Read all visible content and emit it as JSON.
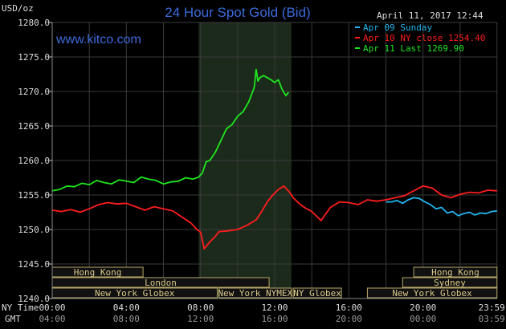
{
  "title": "24 Hour Spot Gold (Bid)",
  "website": "www.kitco.com",
  "timestamp": "April 11, 2017 12:44",
  "y_unit_label": "USD/oz",
  "row_label_ny": "NY Time",
  "row_label_gmt": "GMT",
  "colors": {
    "background": "#000000",
    "plot_background": "#000000",
    "grid": "#3a3a3a",
    "highlight": "#1c2a1c",
    "title": "#3b6bdc",
    "website": "#3b6bdc",
    "text": "#dddddd",
    "market_fill": "#111111",
    "market_border": "#b9a86a",
    "market_text": "#d9c98a",
    "sunday": "#21b5ef",
    "ny_close": "#ff1d1d",
    "last": "#1ee61e"
  },
  "chart_data": {
    "type": "line",
    "title": "24 Hour Spot Gold (Bid)",
    "ylabel": "USD/oz",
    "ylim": [
      1240.0,
      1280.0
    ],
    "y_ticks": [
      "1240.0",
      "1245.0",
      "1250.0",
      "1255.0",
      "1260.0",
      "1265.0",
      "1270.0",
      "1275.0",
      "1280.0"
    ],
    "xlim": [
      0,
      24
    ],
    "x_ticks_ny": [
      "00:00",
      "04:00",
      "08:00",
      "12:00",
      "16:00",
      "20:00",
      "23:59"
    ],
    "x_ticks_gmt": [
      "04:00",
      "08:00",
      "12:00",
      "16:00",
      "20:00",
      "00:00",
      "03:59"
    ],
    "grid": true,
    "legend_position": "top-right",
    "highlight_hours": [
      7.9,
      12.9
    ],
    "series": [
      {
        "name": "Apr 09 Sunday",
        "legend_label": "Apr 09 Sunday",
        "color": "#21b5ef",
        "x": [
          18.0,
          18.3,
          18.6,
          18.9,
          19.2,
          19.5,
          19.8,
          20.1,
          20.4,
          20.7,
          21.0,
          21.3,
          21.6,
          21.9,
          22.2,
          22.5,
          22.8,
          23.1,
          23.4,
          23.7,
          23.99
        ],
        "y": [
          1254.0,
          1254.0,
          1254.2,
          1253.8,
          1254.3,
          1254.6,
          1254.5,
          1254.0,
          1253.6,
          1253.0,
          1253.2,
          1252.4,
          1252.6,
          1252.0,
          1252.3,
          1252.5,
          1252.1,
          1252.4,
          1252.3,
          1252.6,
          1252.7
        ]
      },
      {
        "name": "Apr 10 NY close",
        "legend_label": "Apr 10 NY close 1254.40",
        "legend_value": "1254.40",
        "color": "#ff1d1d",
        "x": [
          0.0,
          0.5,
          1.0,
          1.5,
          2.0,
          2.5,
          3.0,
          3.5,
          4.0,
          4.5,
          5.0,
          5.5,
          6.0,
          6.5,
          7.0,
          7.5,
          7.8,
          8.0,
          8.2,
          8.5,
          8.8,
          9.0,
          9.5,
          10.0,
          10.5,
          11.0,
          11.3,
          11.6,
          11.9,
          12.2,
          12.5,
          12.8,
          13.0,
          13.3,
          13.6,
          14.0,
          14.5,
          15.0,
          15.5,
          16.0,
          16.5,
          17.0,
          17.5,
          18.0,
          18.5,
          19.0,
          19.5,
          20.0,
          20.5,
          21.0,
          21.5,
          22.0,
          22.5,
          23.0,
          23.5,
          23.99
        ],
        "y": [
          1252.8,
          1252.6,
          1252.9,
          1252.5,
          1253.0,
          1253.6,
          1253.9,
          1253.7,
          1253.8,
          1253.3,
          1252.8,
          1253.3,
          1253.0,
          1252.7,
          1251.8,
          1250.9,
          1250.0,
          1249.6,
          1247.2,
          1248.2,
          1249.0,
          1249.7,
          1249.8,
          1250.0,
          1250.6,
          1251.4,
          1252.6,
          1254.0,
          1255.0,
          1255.8,
          1256.3,
          1255.4,
          1254.6,
          1253.8,
          1253.2,
          1252.6,
          1251.3,
          1253.2,
          1254.0,
          1253.9,
          1253.6,
          1254.3,
          1254.1,
          1254.3,
          1254.6,
          1254.9,
          1255.6,
          1256.3,
          1256.0,
          1255.0,
          1254.6,
          1255.1,
          1255.4,
          1255.3,
          1255.7,
          1255.6
        ]
      },
      {
        "name": "Apr 11 Last",
        "legend_label": "Apr 11 Last 1269.90",
        "legend_value": "1269.90",
        "color": "#1ee61e",
        "x": [
          0.0,
          0.4,
          0.8,
          1.2,
          1.6,
          2.0,
          2.4,
          2.8,
          3.2,
          3.6,
          4.0,
          4.4,
          4.8,
          5.2,
          5.6,
          6.0,
          6.4,
          6.8,
          7.2,
          7.6,
          7.9,
          8.1,
          8.3,
          8.5,
          8.8,
          9.1,
          9.4,
          9.7,
          10.0,
          10.3,
          10.6,
          10.9,
          11.0,
          11.1,
          11.2,
          11.4,
          11.6,
          11.8,
          12.0,
          12.2,
          12.4,
          12.6,
          12.75
        ],
        "y": [
          1255.6,
          1255.8,
          1256.3,
          1256.2,
          1256.7,
          1256.5,
          1257.1,
          1256.8,
          1256.6,
          1257.2,
          1257.0,
          1256.8,
          1257.6,
          1257.3,
          1257.1,
          1256.6,
          1256.9,
          1257.0,
          1257.5,
          1257.3,
          1257.6,
          1258.2,
          1259.8,
          1260.0,
          1261.2,
          1262.9,
          1264.6,
          1265.2,
          1266.4,
          1267.1,
          1268.5,
          1270.6,
          1273.2,
          1271.5,
          1272.0,
          1272.3,
          1272.0,
          1271.7,
          1271.3,
          1271.7,
          1270.3,
          1269.4,
          1269.9
        ]
      }
    ],
    "markets": [
      {
        "name": "Hong Kong",
        "start": 0.0,
        "end": 4.9,
        "row": 0
      },
      {
        "name": "London",
        "start": 0.0,
        "end": 11.7,
        "row": 1
      },
      {
        "name": "New York Globex",
        "start": 0.0,
        "end": 8.9,
        "row": 2
      },
      {
        "name": "New York NYMEX",
        "start": 9.0,
        "end": 12.9,
        "row": 2
      },
      {
        "name": "NY Globex",
        "start": 13.0,
        "end": 15.6,
        "row": 2
      },
      {
        "name": "Hong Kong",
        "start": 19.5,
        "end": 23.99,
        "row": 0
      },
      {
        "name": "Sydney",
        "start": 18.9,
        "end": 23.99,
        "row": 1
      },
      {
        "name": "New York Globex",
        "start": 17.0,
        "end": 23.99,
        "row": 2
      }
    ]
  }
}
